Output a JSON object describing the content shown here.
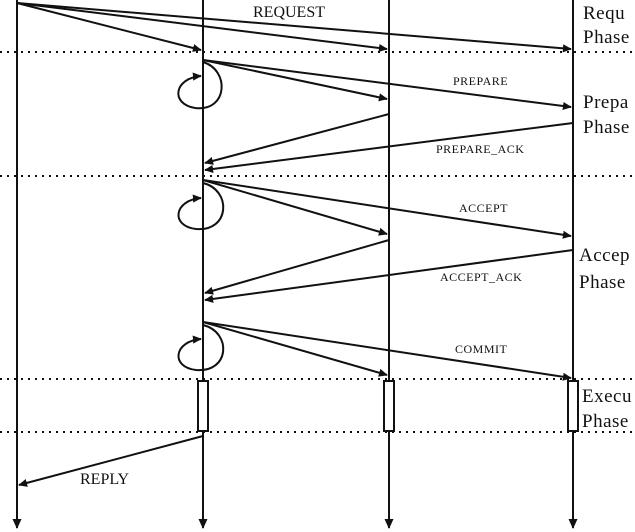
{
  "messages": {
    "request": "REQUEST",
    "prepare": "PREPARE",
    "prepare_ack": "PREPARE_ACK",
    "accept": "ACCEPT",
    "accept_ack": "ACCEPT_ACK",
    "commit": "COMMIT",
    "reply": "REPLY"
  },
  "phases": {
    "request": [
      "Requ",
      "Phase"
    ],
    "prepare": [
      "Prepa",
      "Phase"
    ],
    "accept": [
      "Accep",
      "Phase"
    ],
    "execute": [
      "Execu",
      "Phase"
    ]
  }
}
